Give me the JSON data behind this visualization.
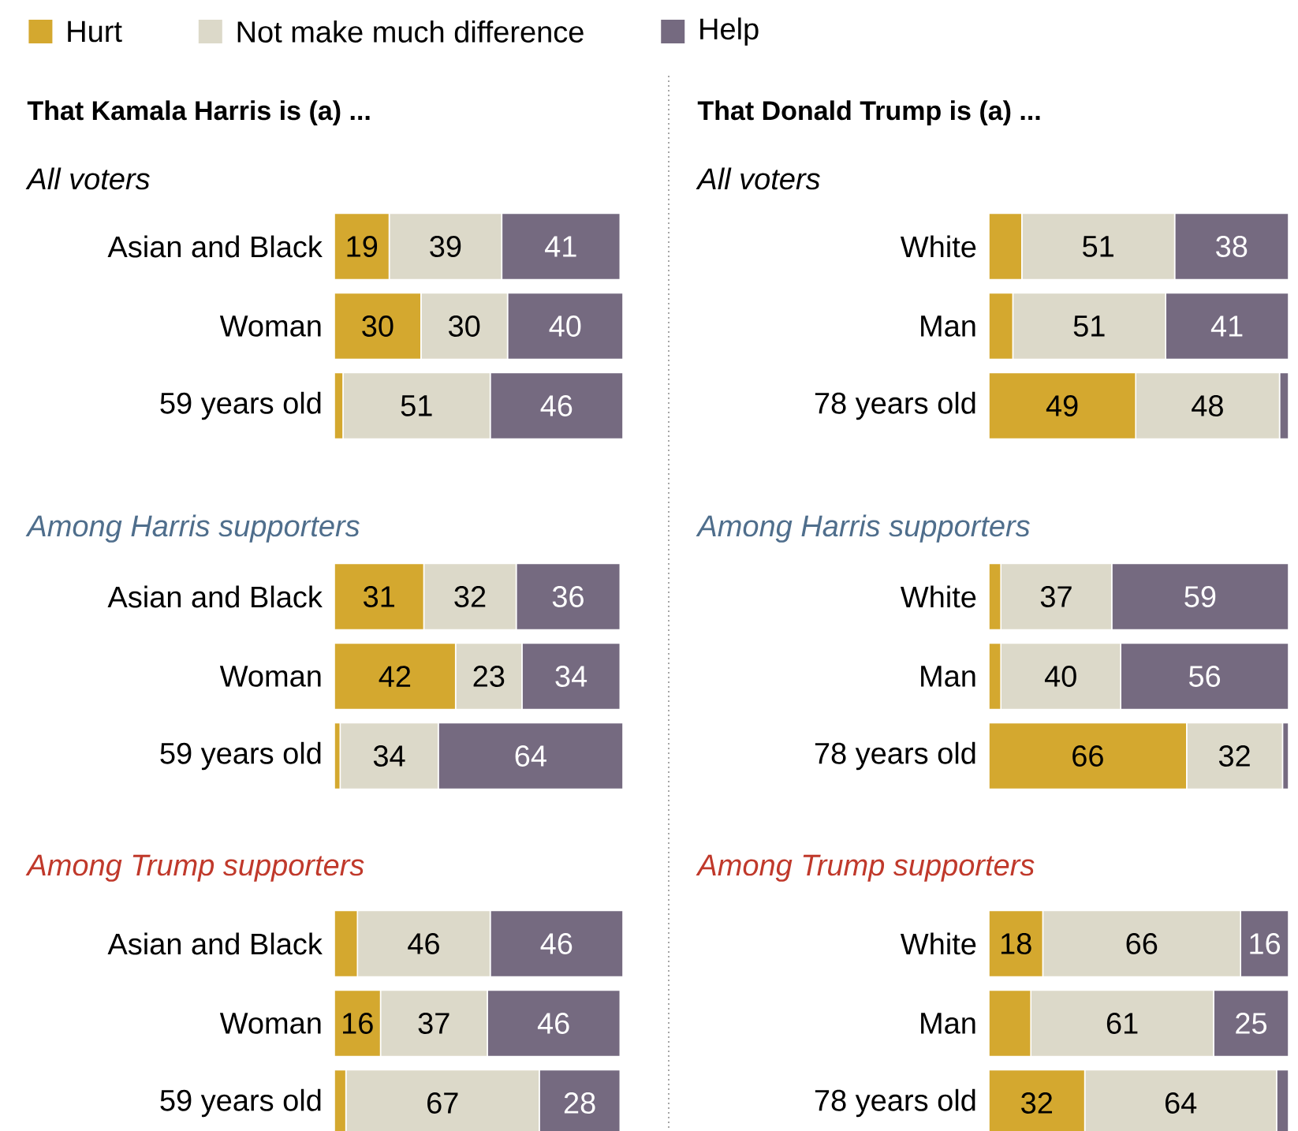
{
  "chart_data": [
    {
      "type": "bar",
      "orientation": "horizontal",
      "stacked": true,
      "legend": "top",
      "title": "That Kamala Harris is (a) ...",
      "subtitle": "All voters",
      "categories": [
        "Asian and Black",
        "Woman",
        "59 years old"
      ],
      "series": [
        {
          "name": "Hurt",
          "color": "#d4a82f",
          "values": [
            19,
            30,
            3
          ],
          "value_labels": [
            "19",
            "30",
            null
          ]
        },
        {
          "name": "Not make much difference",
          "color": "#dcd9c9",
          "values": [
            39,
            30,
            51
          ],
          "value_labels": [
            "39",
            "30",
            "51"
          ]
        },
        {
          "name": "Help",
          "color": "#756a80",
          "values": [
            41,
            40,
            46
          ],
          "value_labels": [
            "41",
            "40",
            "46"
          ]
        }
      ]
    },
    {
      "type": "bar",
      "orientation": "horizontal",
      "stacked": true,
      "title": "That Donald Trump is (a) ...",
      "subtitle": "All voters",
      "categories": [
        "White",
        "Man",
        "78 years old"
      ],
      "series": [
        {
          "color": "#d4a82f",
          "values": [
            11,
            8,
            49
          ],
          "value_labels": [
            null,
            null,
            "49"
          ]
        },
        {
          "color": "#dcd9c9",
          "values": [
            51,
            51,
            48
          ],
          "value_labels": [
            "51",
            "51",
            "48"
          ]
        },
        {
          "color": "#756a80",
          "values": [
            38,
            41,
            3
          ],
          "value_labels": [
            "38",
            "41",
            null
          ]
        }
      ]
    },
    {
      "type": "bar",
      "orientation": "horizontal",
      "stacked": true,
      "subtitle": "Among Harris supporters",
      "categories": [
        "Asian and Black",
        "Woman",
        "59 years old"
      ],
      "series": [
        {
          "color": "#d4a82f",
          "values": [
            31,
            42,
            2
          ],
          "value_labels": [
            "31",
            "42",
            null
          ]
        },
        {
          "color": "#dcd9c9",
          "values": [
            32,
            23,
            34
          ],
          "value_labels": [
            "32",
            "23",
            "34"
          ]
        },
        {
          "color": "#756a80",
          "values": [
            36,
            34,
            64
          ],
          "value_labels": [
            "36",
            "34",
            "64"
          ]
        }
      ]
    },
    {
      "type": "bar",
      "orientation": "horizontal",
      "stacked": true,
      "subtitle": "Among Harris supporters",
      "categories": [
        "White",
        "Man",
        "78 years old"
      ],
      "series": [
        {
          "color": "#d4a82f",
          "values": [
            4,
            4,
            66
          ],
          "value_labels": [
            null,
            null,
            "66"
          ]
        },
        {
          "color": "#dcd9c9",
          "values": [
            37,
            40,
            32
          ],
          "value_labels": [
            "37",
            "40",
            "32"
          ]
        },
        {
          "color": "#756a80",
          "values": [
            59,
            56,
            2
          ],
          "value_labels": [
            "59",
            "56",
            null
          ]
        }
      ]
    },
    {
      "type": "bar",
      "orientation": "horizontal",
      "stacked": true,
      "subtitle": "Among Trump supporters",
      "categories": [
        "Asian and Black",
        "Woman",
        "59 years old"
      ],
      "series": [
        {
          "color": "#d4a82f",
          "values": [
            8,
            16,
            4
          ],
          "value_labels": [
            null,
            "16",
            null
          ]
        },
        {
          "color": "#dcd9c9",
          "values": [
            46,
            37,
            67
          ],
          "value_labels": [
            "46",
            "37",
            "67"
          ]
        },
        {
          "color": "#756a80",
          "values": [
            46,
            46,
            28
          ],
          "value_labels": [
            "46",
            "46",
            "28"
          ]
        }
      ]
    },
    {
      "type": "bar",
      "orientation": "horizontal",
      "stacked": true,
      "subtitle": "Among Trump supporters",
      "categories": [
        "White",
        "Man",
        "78 years old"
      ],
      "series": [
        {
          "color": "#d4a82f",
          "values": [
            18,
            14,
            32
          ],
          "value_labels": [
            "18",
            null,
            "32"
          ]
        },
        {
          "color": "#dcd9c9",
          "values": [
            66,
            61,
            64
          ],
          "value_labels": [
            "66",
            "61",
            "64"
          ]
        },
        {
          "color": "#756a80",
          "values": [
            16,
            25,
            4
          ],
          "value_labels": [
            "16",
            "25",
            null
          ]
        }
      ]
    }
  ]
}
